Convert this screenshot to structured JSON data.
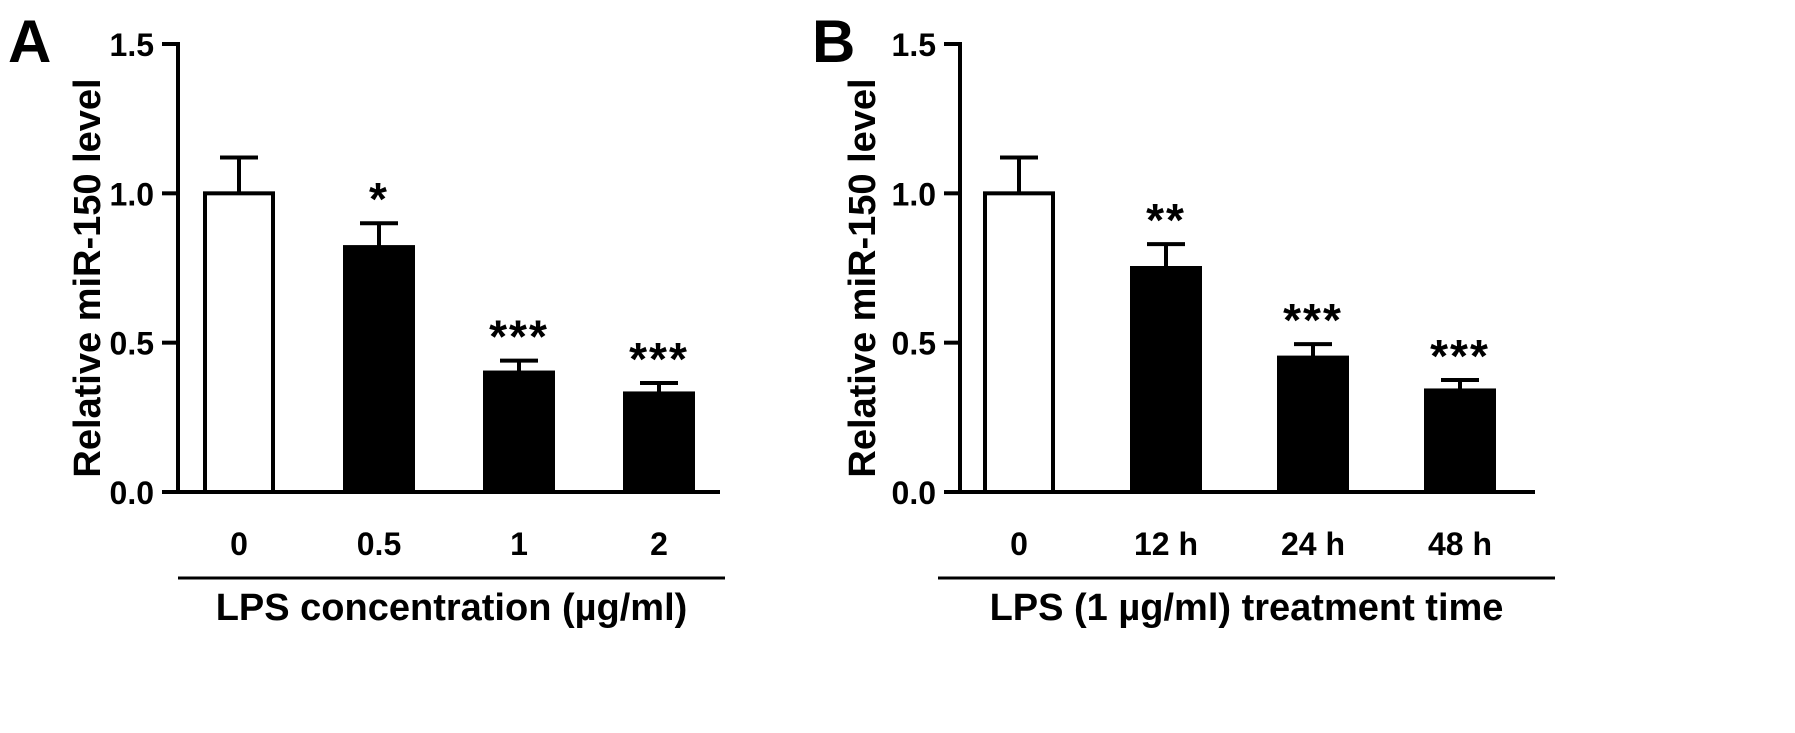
{
  "chart_data": [
    {
      "type": "bar",
      "panel_label": "A",
      "ylabel": "Relative miR-150 level",
      "xlabel": "LPS concentration (µg/ml)",
      "ylim": [
        0,
        1.5
      ],
      "yticks": [
        "0.0",
        "0.5",
        "1.0",
        "1.5"
      ],
      "grid": false,
      "categories": [
        "0",
        "0.5",
        "1",
        "2"
      ],
      "values": [
        1.0,
        0.82,
        0.4,
        0.33
      ],
      "errors": [
        0.12,
        0.08,
        0.04,
        0.035
      ],
      "significance": [
        "",
        "*",
        "***",
        "***"
      ],
      "bar_fills": [
        "#ffffff",
        "#000000",
        "#000000",
        "#000000"
      ]
    },
    {
      "type": "bar",
      "panel_label": "B",
      "ylabel": "Relative miR-150 level",
      "xlabel": "LPS (1 µg/ml) treatment time",
      "ylim": [
        0,
        1.5
      ],
      "yticks": [
        "0.0",
        "0.5",
        "1.0",
        "1.5"
      ],
      "grid": false,
      "categories": [
        "0",
        "12 h",
        "24 h",
        "48 h"
      ],
      "values": [
        1.0,
        0.75,
        0.45,
        0.34
      ],
      "errors": [
        0.12,
        0.08,
        0.045,
        0.035
      ],
      "significance": [
        "",
        "**",
        "***",
        "***"
      ],
      "bar_fills": [
        "#ffffff",
        "#000000",
        "#000000",
        "#000000"
      ]
    }
  ]
}
